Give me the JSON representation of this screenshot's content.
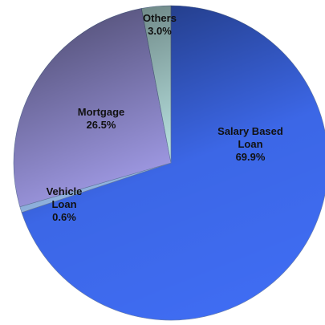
{
  "chart_data": {
    "type": "pie",
    "categories": [
      "Salary Based Loan",
      "Vehicle Loan",
      "Mortgage",
      "Others"
    ],
    "values": [
      69.9,
      0.6,
      26.5,
      3.0
    ],
    "value_labels": [
      "69.9%",
      "0.6%",
      "26.5%",
      "3.0%"
    ],
    "colors": [
      "#3f6cf2",
      "#9bc0f0",
      "#a6a0ee",
      "#c8f6f4"
    ]
  }
}
